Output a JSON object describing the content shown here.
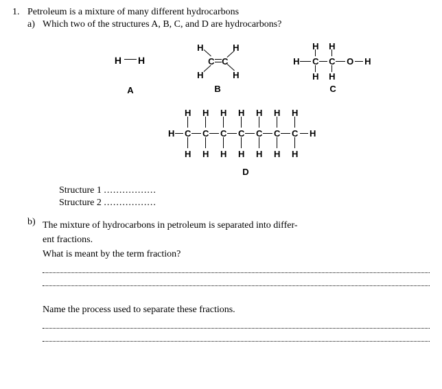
{
  "question": {
    "number": "1.",
    "intro": "Petroleum is a mixture of many different hydrocarbons",
    "a": {
      "letter": "a)",
      "prompt": "Which two of the structures A, B, C, and D are hydrocarbons?",
      "labelA": "A",
      "labelB": "B",
      "labelC": "C",
      "labelD": "D",
      "struct1": "Structure 1",
      "struct2": "Structure 2",
      "dots": ".................",
      "atoms": {
        "H": "H",
        "C": "C",
        "O": "O"
      }
    },
    "b": {
      "letter": "b)",
      "line1": "The mixture of hydrocarbons in petroleum is separated into differ-",
      "line2": "ent fractions.",
      "prompt": "What is meant by the term fraction?",
      "followup": "Name the process used to separate these fractions."
    }
  }
}
